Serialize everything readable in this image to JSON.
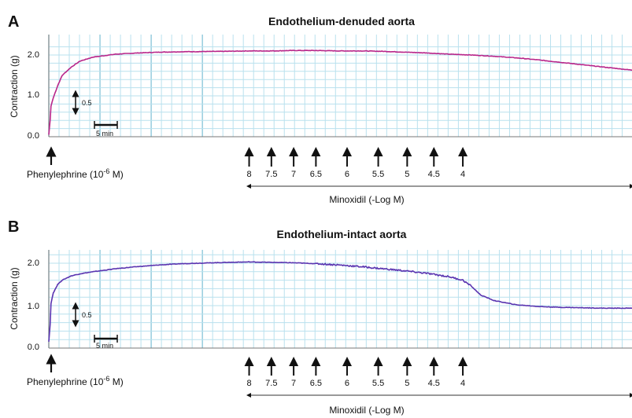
{
  "colors": {
    "trace_a": "#b8268a",
    "trace_b": "#5a34b0",
    "grid": "#b9e1ee",
    "grid_major": "#86c4d8"
  },
  "stimulus_label": "Phenylephrine (10",
  "stimulus_exp": "-6",
  "stimulus_unit": " M)",
  "drug_label": "Minoxidil (-Log M)",
  "doses": [
    "8",
    "7.5",
    "7",
    "6.5",
    "6",
    "5.5",
    "5",
    "4.5",
    "4"
  ],
  "scale_force": "0.5",
  "scale_time": "5 min",
  "chart_data": [
    {
      "type": "line",
      "panel_letter": "A",
      "title": "Endothelium-denuded aorta",
      "ylabel": "Contraction (g)",
      "yticks": [
        "0.0",
        "1.0",
        "2.0"
      ],
      "ylim": [
        0,
        2.2
      ],
      "x_unit": "min",
      "xlim": [
        0,
        131
      ],
      "minoxidil_dose_times": [
        45,
        50,
        55,
        60,
        67,
        74,
        80.5,
        86.5,
        93
      ],
      "series": [
        {
          "name": "",
          "x": [
            0,
            0.3,
            0.5,
            1,
            2,
            3,
            5,
            7,
            10,
            15,
            20,
            25,
            30,
            40,
            45,
            50,
            55,
            60,
            65,
            70,
            75,
            80,
            85,
            90,
            95,
            100,
            105,
            110,
            115,
            120,
            125,
            131
          ],
          "y": [
            0.05,
            0.4,
            0.75,
            0.95,
            1.25,
            1.5,
            1.7,
            1.85,
            1.95,
            2.02,
            2.05,
            2.07,
            2.08,
            2.09,
            2.1,
            2.1,
            2.11,
            2.11,
            2.1,
            2.1,
            2.09,
            2.07,
            2.05,
            2.02,
            2.0,
            1.97,
            1.93,
            1.88,
            1.82,
            1.76,
            1.7,
            1.63
          ]
        }
      ]
    },
    {
      "type": "line",
      "panel_letter": "B",
      "title": "Endothelium-intact aorta",
      "ylabel": "Contraction (g)",
      "yticks": [
        "0.0",
        "1.0",
        "2.0"
      ],
      "ylim": [
        0,
        2.2
      ],
      "x_unit": "min",
      "xlim": [
        0,
        131
      ],
      "minoxidil_dose_times": [
        45,
        50,
        55,
        60,
        67,
        74,
        80.5,
        86.5,
        93
      ],
      "series": [
        {
          "name": "",
          "x": [
            0,
            0.3,
            0.5,
            1,
            2,
            3,
            5,
            7,
            10,
            15,
            20,
            25,
            30,
            40,
            45,
            50,
            55,
            60,
            65,
            70,
            75,
            80,
            85,
            90,
            93,
            95,
            97,
            100,
            105,
            110,
            115,
            120,
            125,
            131
          ],
          "y": [
            0.15,
            0.55,
            1.05,
            1.3,
            1.5,
            1.6,
            1.7,
            1.75,
            1.8,
            1.87,
            1.92,
            1.96,
            1.99,
            2.02,
            2.03,
            2.02,
            2.01,
            1.99,
            1.96,
            1.92,
            1.87,
            1.82,
            1.76,
            1.68,
            1.6,
            1.45,
            1.25,
            1.12,
            1.02,
            0.98,
            0.96,
            0.95,
            0.94,
            0.94
          ]
        }
      ]
    }
  ]
}
